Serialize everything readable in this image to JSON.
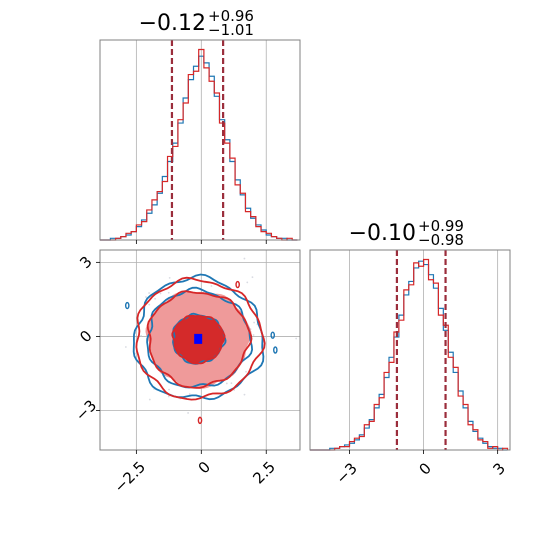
{
  "chart_data": [
    {
      "type": "histogram",
      "panel": "marginal-x",
      "title": {
        "main": "−0.12",
        "sup": "+0.96",
        "sub": "−1.01"
      },
      "xlim": [
        -3.9,
        3.8
      ],
      "grid": true,
      "quantile_lines": [
        -1.13,
        0.84
      ],
      "bins": [
        -3.9,
        -3.7,
        -3.5,
        -3.3,
        -3.1,
        -2.9,
        -2.7,
        -2.5,
        -2.3,
        -2.1,
        -1.9,
        -1.7,
        -1.5,
        -1.3,
        -1.1,
        -0.9,
        -0.7,
        -0.5,
        -0.3,
        -0.1,
        0.1,
        0.3,
        0.5,
        0.7,
        0.9,
        1.1,
        1.3,
        1.5,
        1.7,
        1.9,
        2.1,
        2.3,
        2.5,
        2.7,
        2.9,
        3.1,
        3.3,
        3.5,
        3.7
      ],
      "series": [
        {
          "counts": [
            0,
            0,
            1,
            1,
            2,
            3,
            5,
            8,
            12,
            16,
            21,
            28,
            38,
            47,
            58,
            70,
            85,
            96,
            104,
            110,
            106,
            98,
            86,
            72,
            60,
            47,
            36,
            27,
            19,
            13,
            9,
            6,
            3,
            2,
            1,
            1,
            0,
            0
          ]
        },
        {
          "counts": [
            0,
            0,
            0,
            1,
            2,
            4,
            5,
            9,
            11,
            18,
            24,
            29,
            35,
            50,
            56,
            72,
            82,
            99,
            101,
            114,
            103,
            95,
            88,
            70,
            58,
            49,
            33,
            28,
            17,
            14,
            8,
            5,
            4,
            2,
            1,
            0,
            1,
            0
          ]
        }
      ],
      "ticks": [
        -2.5,
        0.0,
        2.5
      ]
    },
    {
      "type": "histogram",
      "panel": "marginal-y",
      "title": {
        "main": "−0.10",
        "sup": "+0.99",
        "sub": "−0.98"
      },
      "xlim": [
        -4.6,
        3.5
      ],
      "grid": true,
      "quantile_lines": [
        -1.08,
        0.89
      ],
      "bins": [
        -4.6,
        -4.4,
        -4.2,
        -4.0,
        -3.8,
        -3.6,
        -3.4,
        -3.2,
        -3.0,
        -2.8,
        -2.6,
        -2.4,
        -2.2,
        -2.0,
        -1.8,
        -1.6,
        -1.4,
        -1.2,
        -1.0,
        -0.8,
        -0.6,
        -0.4,
        -0.2,
        0.0,
        0.2,
        0.4,
        0.6,
        0.8,
        1.0,
        1.2,
        1.4,
        1.6,
        1.8,
        2.0,
        2.2,
        2.4,
        2.6,
        2.8,
        3.0,
        3.2,
        3.4
      ],
      "series": [
        {
          "counts": [
            0,
            0,
            0,
            0,
            1,
            1,
            2,
            3,
            4,
            6,
            9,
            13,
            18,
            25,
            33,
            43,
            55,
            67,
            80,
            92,
            100,
            108,
            112,
            110,
            104,
            96,
            84,
            71,
            58,
            46,
            35,
            25,
            17,
            11,
            7,
            4,
            2,
            1,
            1,
            0
          ]
        },
        {
          "counts": [
            0,
            0,
            0,
            0,
            0,
            1,
            2,
            2,
            5,
            7,
            8,
            15,
            17,
            27,
            31,
            46,
            52,
            70,
            77,
            95,
            98,
            111,
            109,
            113,
            101,
            99,
            80,
            74,
            55,
            49,
            32,
            27,
            15,
            12,
            6,
            5,
            1,
            2,
            0,
            1
          ]
        }
      ],
      "ticks": [
        -3,
        0,
        3
      ]
    },
    {
      "type": "contour",
      "panel": "joint",
      "xlim": [
        -3.9,
        3.8
      ],
      "ylim": [
        -4.6,
        3.5
      ],
      "grid": true,
      "center": [
        -0.12,
        -0.1
      ],
      "sigma": [
        0.99,
        0.98
      ],
      "levels_sigma": [
        1.0,
        2.0,
        2.5
      ],
      "outliers": [
        [
          -2.85,
          1.25
        ],
        [
          1.4,
          2.1
        ],
        [
          2.85,
          -0.55
        ],
        [
          -0.05,
          -3.4
        ],
        [
          2.75,
          0.05
        ]
      ],
      "xticks": [
        -2.5,
        0.0,
        2.5
      ],
      "yticks": [
        -3,
        0,
        3
      ]
    }
  ],
  "colors": {
    "series_blue": "#1f77b4",
    "series_red": "#d62728",
    "fill_red_light": "#ef9a9a",
    "fill_red_dark": "#d42a2a",
    "quantile_line": "#9b2d3c",
    "center_marker": "#0000ff",
    "grid": "#b0b0b0",
    "axis": "#808080"
  }
}
